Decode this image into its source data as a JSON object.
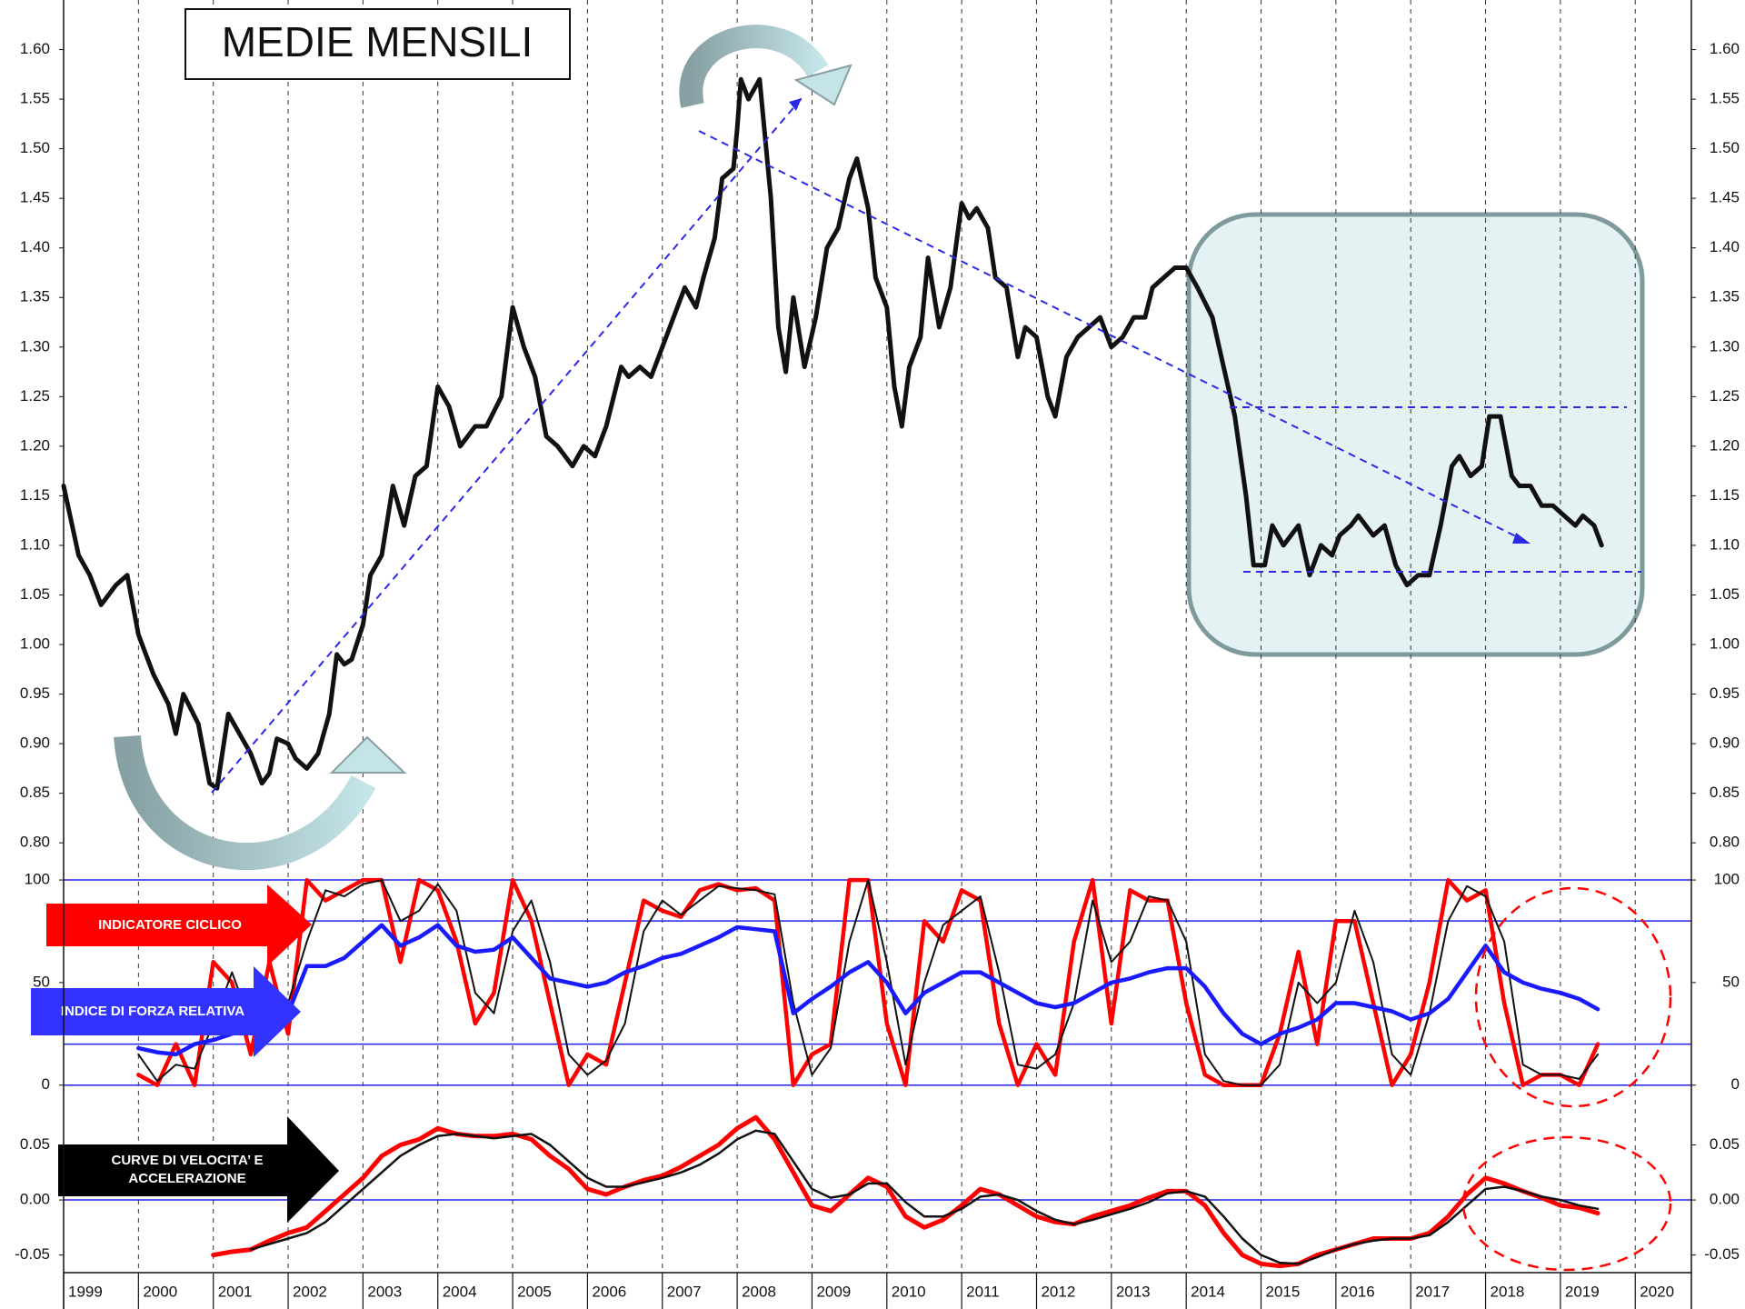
{
  "chart_data": [
    {
      "type": "line",
      "title": "MEDIE MENSILI",
      "x": [
        1999.0,
        1999.2,
        1999.35,
        1999.5,
        1999.7,
        1999.85,
        2000.0,
        2000.2,
        2000.4,
        2000.5,
        2000.6,
        2000.8,
        2000.95,
        2001.05,
        2001.2,
        2001.35,
        2001.5,
        2001.65,
        2001.75,
        2001.85,
        2002.0,
        2002.1,
        2002.25,
        2002.4,
        2002.55,
        2002.65,
        2002.75,
        2002.85,
        2003.0,
        2003.1,
        2003.25,
        2003.4,
        2003.55,
        2003.7,
        2003.85,
        2004.0,
        2004.15,
        2004.3,
        2004.5,
        2004.65,
        2004.85,
        2005.0,
        2005.15,
        2005.3,
        2005.45,
        2005.6,
        2005.8,
        2005.95,
        2006.1,
        2006.25,
        2006.45,
        2006.55,
        2006.7,
        2006.85,
        2007.0,
        2007.15,
        2007.3,
        2007.45,
        2007.55,
        2007.7,
        2007.8,
        2007.95,
        2008.0,
        2008.05,
        2008.15,
        2008.3,
        2008.45,
        2008.55,
        2008.65,
        2008.75,
        2008.9,
        2009.05,
        2009.2,
        2009.35,
        2009.5,
        2009.6,
        2009.75,
        2009.85,
        2010.0,
        2010.1,
        2010.2,
        2010.3,
        2010.45,
        2010.55,
        2010.7,
        2010.85,
        2011.0,
        2011.1,
        2011.2,
        2011.35,
        2011.45,
        2011.6,
        2011.75,
        2011.85,
        2012.0,
        2012.15,
        2012.25,
        2012.4,
        2012.55,
        2012.7,
        2012.85,
        2013.0,
        2013.15,
        2013.3,
        2013.45,
        2013.55,
        2013.7,
        2013.85,
        2014.0,
        2014.15,
        2014.35,
        2014.5,
        2014.65,
        2014.8,
        2014.9,
        2015.05,
        2015.15,
        2015.3,
        2015.5,
        2015.65,
        2015.8,
        2015.95,
        2016.05,
        2016.2,
        2016.3,
        2016.5,
        2016.65,
        2016.8,
        2016.95,
        2017.1,
        2017.25,
        2017.4,
        2017.55,
        2017.65,
        2017.8,
        2017.95,
        2018.05,
        2018.2,
        2018.35,
        2018.45,
        2018.6,
        2018.75,
        2018.9,
        2019.05,
        2019.2,
        2019.3,
        2019.45,
        2019.55
      ],
      "series": [
        {
          "color": "#111111",
          "values": [
            1.16,
            1.09,
            1.07,
            1.04,
            1.06,
            1.07,
            1.01,
            0.97,
            0.94,
            0.91,
            0.95,
            0.92,
            0.86,
            0.855,
            0.93,
            0.91,
            0.89,
            0.86,
            0.87,
            0.905,
            0.9,
            0.885,
            0.875,
            0.89,
            0.93,
            0.99,
            0.98,
            0.985,
            1.02,
            1.07,
            1.09,
            1.16,
            1.12,
            1.17,
            1.18,
            1.26,
            1.24,
            1.2,
            1.22,
            1.22,
            1.25,
            1.34,
            1.3,
            1.27,
            1.21,
            1.2,
            1.18,
            1.2,
            1.19,
            1.22,
            1.28,
            1.27,
            1.28,
            1.27,
            1.3,
            1.33,
            1.36,
            1.34,
            1.37,
            1.41,
            1.47,
            1.48,
            1.52,
            1.57,
            1.55,
            1.57,
            1.45,
            1.32,
            1.275,
            1.35,
            1.28,
            1.33,
            1.4,
            1.42,
            1.47,
            1.49,
            1.44,
            1.37,
            1.34,
            1.26,
            1.22,
            1.28,
            1.31,
            1.39,
            1.32,
            1.36,
            1.445,
            1.43,
            1.44,
            1.42,
            1.37,
            1.36,
            1.29,
            1.32,
            1.31,
            1.25,
            1.23,
            1.29,
            1.31,
            1.32,
            1.33,
            1.3,
            1.31,
            1.33,
            1.33,
            1.36,
            1.37,
            1.38,
            1.38,
            1.36,
            1.33,
            1.28,
            1.23,
            1.15,
            1.08,
            1.08,
            1.12,
            1.1,
            1.12,
            1.07,
            1.1,
            1.09,
            1.11,
            1.12,
            1.13,
            1.11,
            1.12,
            1.08,
            1.06,
            1.07,
            1.07,
            1.12,
            1.18,
            1.19,
            1.17,
            1.18,
            1.23,
            1.23,
            1.17,
            1.16,
            1.16,
            1.14,
            1.14,
            1.13,
            1.12,
            1.13,
            1.12,
            1.1
          ]
        }
      ],
      "ylim": [
        0.78,
        1.65
      ],
      "yticks": [
        {
          "value": 0.8,
          "label": "0.80"
        },
        {
          "value": 0.85,
          "label": "0.85"
        },
        {
          "value": 0.9,
          "label": "0.90"
        },
        {
          "value": 0.95,
          "label": "0.95"
        },
        {
          "value": 1.0,
          "label": "1.00"
        },
        {
          "value": 1.05,
          "label": "1.05"
        },
        {
          "value": 1.1,
          "label": "1.10"
        },
        {
          "value": 1.15,
          "label": "1.15"
        },
        {
          "value": 1.2,
          "label": "1.20"
        },
        {
          "value": 1.25,
          "label": "1.25"
        },
        {
          "value": 1.3,
          "label": "1.30"
        },
        {
          "value": 1.35,
          "label": "1.35"
        },
        {
          "value": 1.4,
          "label": "1.40"
        },
        {
          "value": 1.45,
          "label": "1.45"
        },
        {
          "value": 1.5,
          "label": "1.50"
        },
        {
          "value": 1.55,
          "label": "1.55"
        },
        {
          "value": 1.6,
          "label": "1.60"
        }
      ]
    },
    {
      "type": "line",
      "annotations": [
        "INDICATORE CICLICO",
        "INDICE DI FORZA RELATIVA"
      ],
      "x": [
        2000.0,
        2000.25,
        2000.5,
        2000.75,
        2001.0,
        2001.25,
        2001.5,
        2001.75,
        2002.0,
        2002.25,
        2002.5,
        2002.75,
        2003.0,
        2003.25,
        2003.5,
        2003.75,
        2004.0,
        2004.25,
        2004.5,
        2004.75,
        2005.0,
        2005.25,
        2005.5,
        2005.75,
        2006.0,
        2006.25,
        2006.5,
        2006.75,
        2007.0,
        2007.25,
        2007.5,
        2007.75,
        2008.0,
        2008.25,
        2008.5,
        2008.75,
        2009.0,
        2009.25,
        2009.5,
        2009.75,
        2010.0,
        2010.25,
        2010.5,
        2010.75,
        2011.0,
        2011.25,
        2011.5,
        2011.75,
        2012.0,
        2012.25,
        2012.5,
        2012.75,
        2013.0,
        2013.25,
        2013.5,
        2013.75,
        2014.0,
        2014.25,
        2014.5,
        2014.75,
        2015.0,
        2015.25,
        2015.5,
        2015.75,
        2016.0,
        2016.25,
        2016.5,
        2016.75,
        2017.0,
        2017.25,
        2017.5,
        2017.75,
        2018.0,
        2018.25,
        2018.5,
        2018.75,
        2019.0,
        2019.25,
        2019.5
      ],
      "series": [
        {
          "color": "#ff0000",
          "width": 4.5,
          "values": [
            5,
            0,
            20,
            0,
            60,
            50,
            15,
            60,
            25,
            100,
            90,
            95,
            100,
            100,
            60,
            100,
            95,
            70,
            30,
            45,
            100,
            80,
            40,
            0,
            15,
            10,
            50,
            90,
            85,
            82,
            95,
            98,
            95,
            96,
            90,
            0,
            15,
            20,
            100,
            100,
            30,
            0,
            80,
            70,
            95,
            90,
            30,
            0,
            20,
            5,
            70,
            100,
            30,
            95,
            90,
            90,
            40,
            5,
            0,
            0,
            0,
            25,
            65,
            20,
            80,
            80,
            40,
            0,
            15,
            50,
            100,
            90,
            95,
            40,
            0,
            5,
            5,
            0,
            20
          ]
        },
        {
          "color": "#111111",
          "width": 2,
          "values": [
            15,
            2,
            10,
            8,
            30,
            55,
            30,
            40,
            40,
            70,
            95,
            92,
            98,
            100,
            80,
            85,
            98,
            85,
            45,
            35,
            75,
            90,
            60,
            15,
            5,
            12,
            30,
            75,
            90,
            83,
            90,
            97,
            96,
            95,
            93,
            40,
            5,
            18,
            70,
            100,
            60,
            10,
            50,
            78,
            85,
            92,
            55,
            10,
            8,
            15,
            40,
            90,
            60,
            70,
            92,
            90,
            70,
            15,
            2,
            0,
            0,
            10,
            50,
            40,
            50,
            85,
            60,
            15,
            5,
            35,
            80,
            97,
            92,
            70,
            10,
            5,
            5,
            3,
            15
          ]
        },
        {
          "color": "#1a1aff",
          "width": 4.5,
          "values": [
            18,
            16,
            15,
            20,
            22,
            25,
            28,
            32,
            35,
            58,
            58,
            62,
            70,
            78,
            68,
            72,
            78,
            68,
            65,
            66,
            72,
            62,
            52,
            50,
            48,
            50,
            55,
            58,
            62,
            64,
            68,
            72,
            77,
            76,
            75,
            35,
            42,
            48,
            55,
            60,
            50,
            35,
            45,
            50,
            55,
            55,
            50,
            45,
            40,
            38,
            40,
            45,
            50,
            52,
            55,
            57,
            57,
            48,
            35,
            25,
            20,
            25,
            28,
            32,
            40,
            40,
            38,
            36,
            32,
            35,
            42,
            55,
            68,
            55,
            50,
            47,
            45,
            42,
            37
          ]
        }
      ],
      "ylim": [
        -5,
        108
      ],
      "yticks": [
        0,
        50,
        100
      ],
      "hlines": [
        0,
        20,
        80,
        100
      ]
    },
    {
      "type": "line",
      "annotations": [
        "CURVE DI VELOCITA’ E",
        "ACCELERAZIONE"
      ],
      "x": [
        2001.0,
        2001.25,
        2001.5,
        2001.75,
        2002.0,
        2002.25,
        2002.5,
        2002.75,
        2003.0,
        2003.25,
        2003.5,
        2003.75,
        2004.0,
        2004.25,
        2004.5,
        2004.75,
        2005.0,
        2005.25,
        2005.5,
        2005.75,
        2006.0,
        2006.25,
        2006.5,
        2006.75,
        2007.0,
        2007.25,
        2007.5,
        2007.75,
        2008.0,
        2008.25,
        2008.5,
        2008.75,
        2009.0,
        2009.25,
        2009.5,
        2009.75,
        2010.0,
        2010.25,
        2010.5,
        2010.75,
        2011.0,
        2011.25,
        2011.5,
        2011.75,
        2012.0,
        2012.25,
        2012.5,
        2012.75,
        2013.0,
        2013.25,
        2013.5,
        2013.75,
        2014.0,
        2014.25,
        2014.5,
        2014.75,
        2015.0,
        2015.25,
        2015.5,
        2015.75,
        2016.0,
        2016.25,
        2016.5,
        2016.75,
        2017.0,
        2017.25,
        2017.5,
        2017.75,
        2018.0,
        2018.25,
        2018.5,
        2018.75,
        2019.0,
        2019.25,
        2019.5
      ],
      "series": [
        {
          "color": "#ff0000",
          "width": 5,
          "values": [
            -0.05,
            -0.047,
            -0.045,
            -0.037,
            -0.03,
            -0.025,
            -0.01,
            0.005,
            0.02,
            0.04,
            0.05,
            0.055,
            0.065,
            0.06,
            0.058,
            0.058,
            0.06,
            0.055,
            0.04,
            0.028,
            0.01,
            0.005,
            0.012,
            0.018,
            0.022,
            0.03,
            0.04,
            0.05,
            0.065,
            0.075,
            0.055,
            0.025,
            -0.005,
            -0.01,
            0.005,
            0.02,
            0.012,
            -0.015,
            -0.025,
            -0.018,
            -0.005,
            0.01,
            0.005,
            -0.005,
            -0.015,
            -0.02,
            -0.022,
            -0.015,
            -0.01,
            -0.005,
            0.002,
            0.008,
            0.008,
            -0.005,
            -0.03,
            -0.05,
            -0.058,
            -0.06,
            -0.058,
            -0.05,
            -0.045,
            -0.04,
            -0.035,
            -0.035,
            -0.035,
            -0.03,
            -0.015,
            0.005,
            0.02,
            0.015,
            0.008,
            0.002,
            -0.005,
            -0.007,
            -0.012
          ]
        },
        {
          "color": "#111111",
          "width": 2.5,
          "values": [
            null,
            null,
            -0.045,
            -0.04,
            -0.035,
            -0.03,
            -0.02,
            -0.005,
            0.01,
            0.025,
            0.04,
            0.05,
            0.058,
            0.06,
            0.058,
            0.056,
            0.058,
            0.06,
            0.05,
            0.035,
            0.02,
            0.012,
            0.012,
            0.016,
            0.02,
            0.025,
            0.032,
            0.042,
            0.055,
            0.063,
            0.06,
            0.035,
            0.01,
            0.002,
            0.005,
            0.015,
            0.015,
            -0.002,
            -0.015,
            -0.015,
            -0.008,
            0.003,
            0.005,
            0,
            -0.01,
            -0.018,
            -0.022,
            -0.018,
            -0.013,
            -0.008,
            -0.002,
            0.006,
            0.008,
            0.003,
            -0.015,
            -0.035,
            -0.05,
            -0.057,
            -0.058,
            -0.052,
            -0.045,
            -0.04,
            -0.037,
            -0.035,
            -0.035,
            -0.032,
            -0.02,
            -0.005,
            0.01,
            0.012,
            0.008,
            0.003,
            0,
            -0.005,
            -0.008
          ]
        }
      ],
      "ylim": [
        -0.066,
        0.095
      ],
      "yticks": [
        {
          "value": -0.05,
          "label": "-0.05"
        },
        {
          "value": 0,
          "label": "0.00"
        },
        {
          "value": 0.05,
          "label": "0.05"
        }
      ],
      "hlines": [
        0
      ],
      "xlim": [
        1999,
        2020.75
      ],
      "xticks": [
        1999,
        2000,
        2001,
        2002,
        2003,
        2004,
        2005,
        2006,
        2007,
        2008,
        2009,
        2010,
        2011,
        2012,
        2013,
        2014,
        2015,
        2016,
        2017,
        2018,
        2019,
        2020
      ]
    }
  ]
}
